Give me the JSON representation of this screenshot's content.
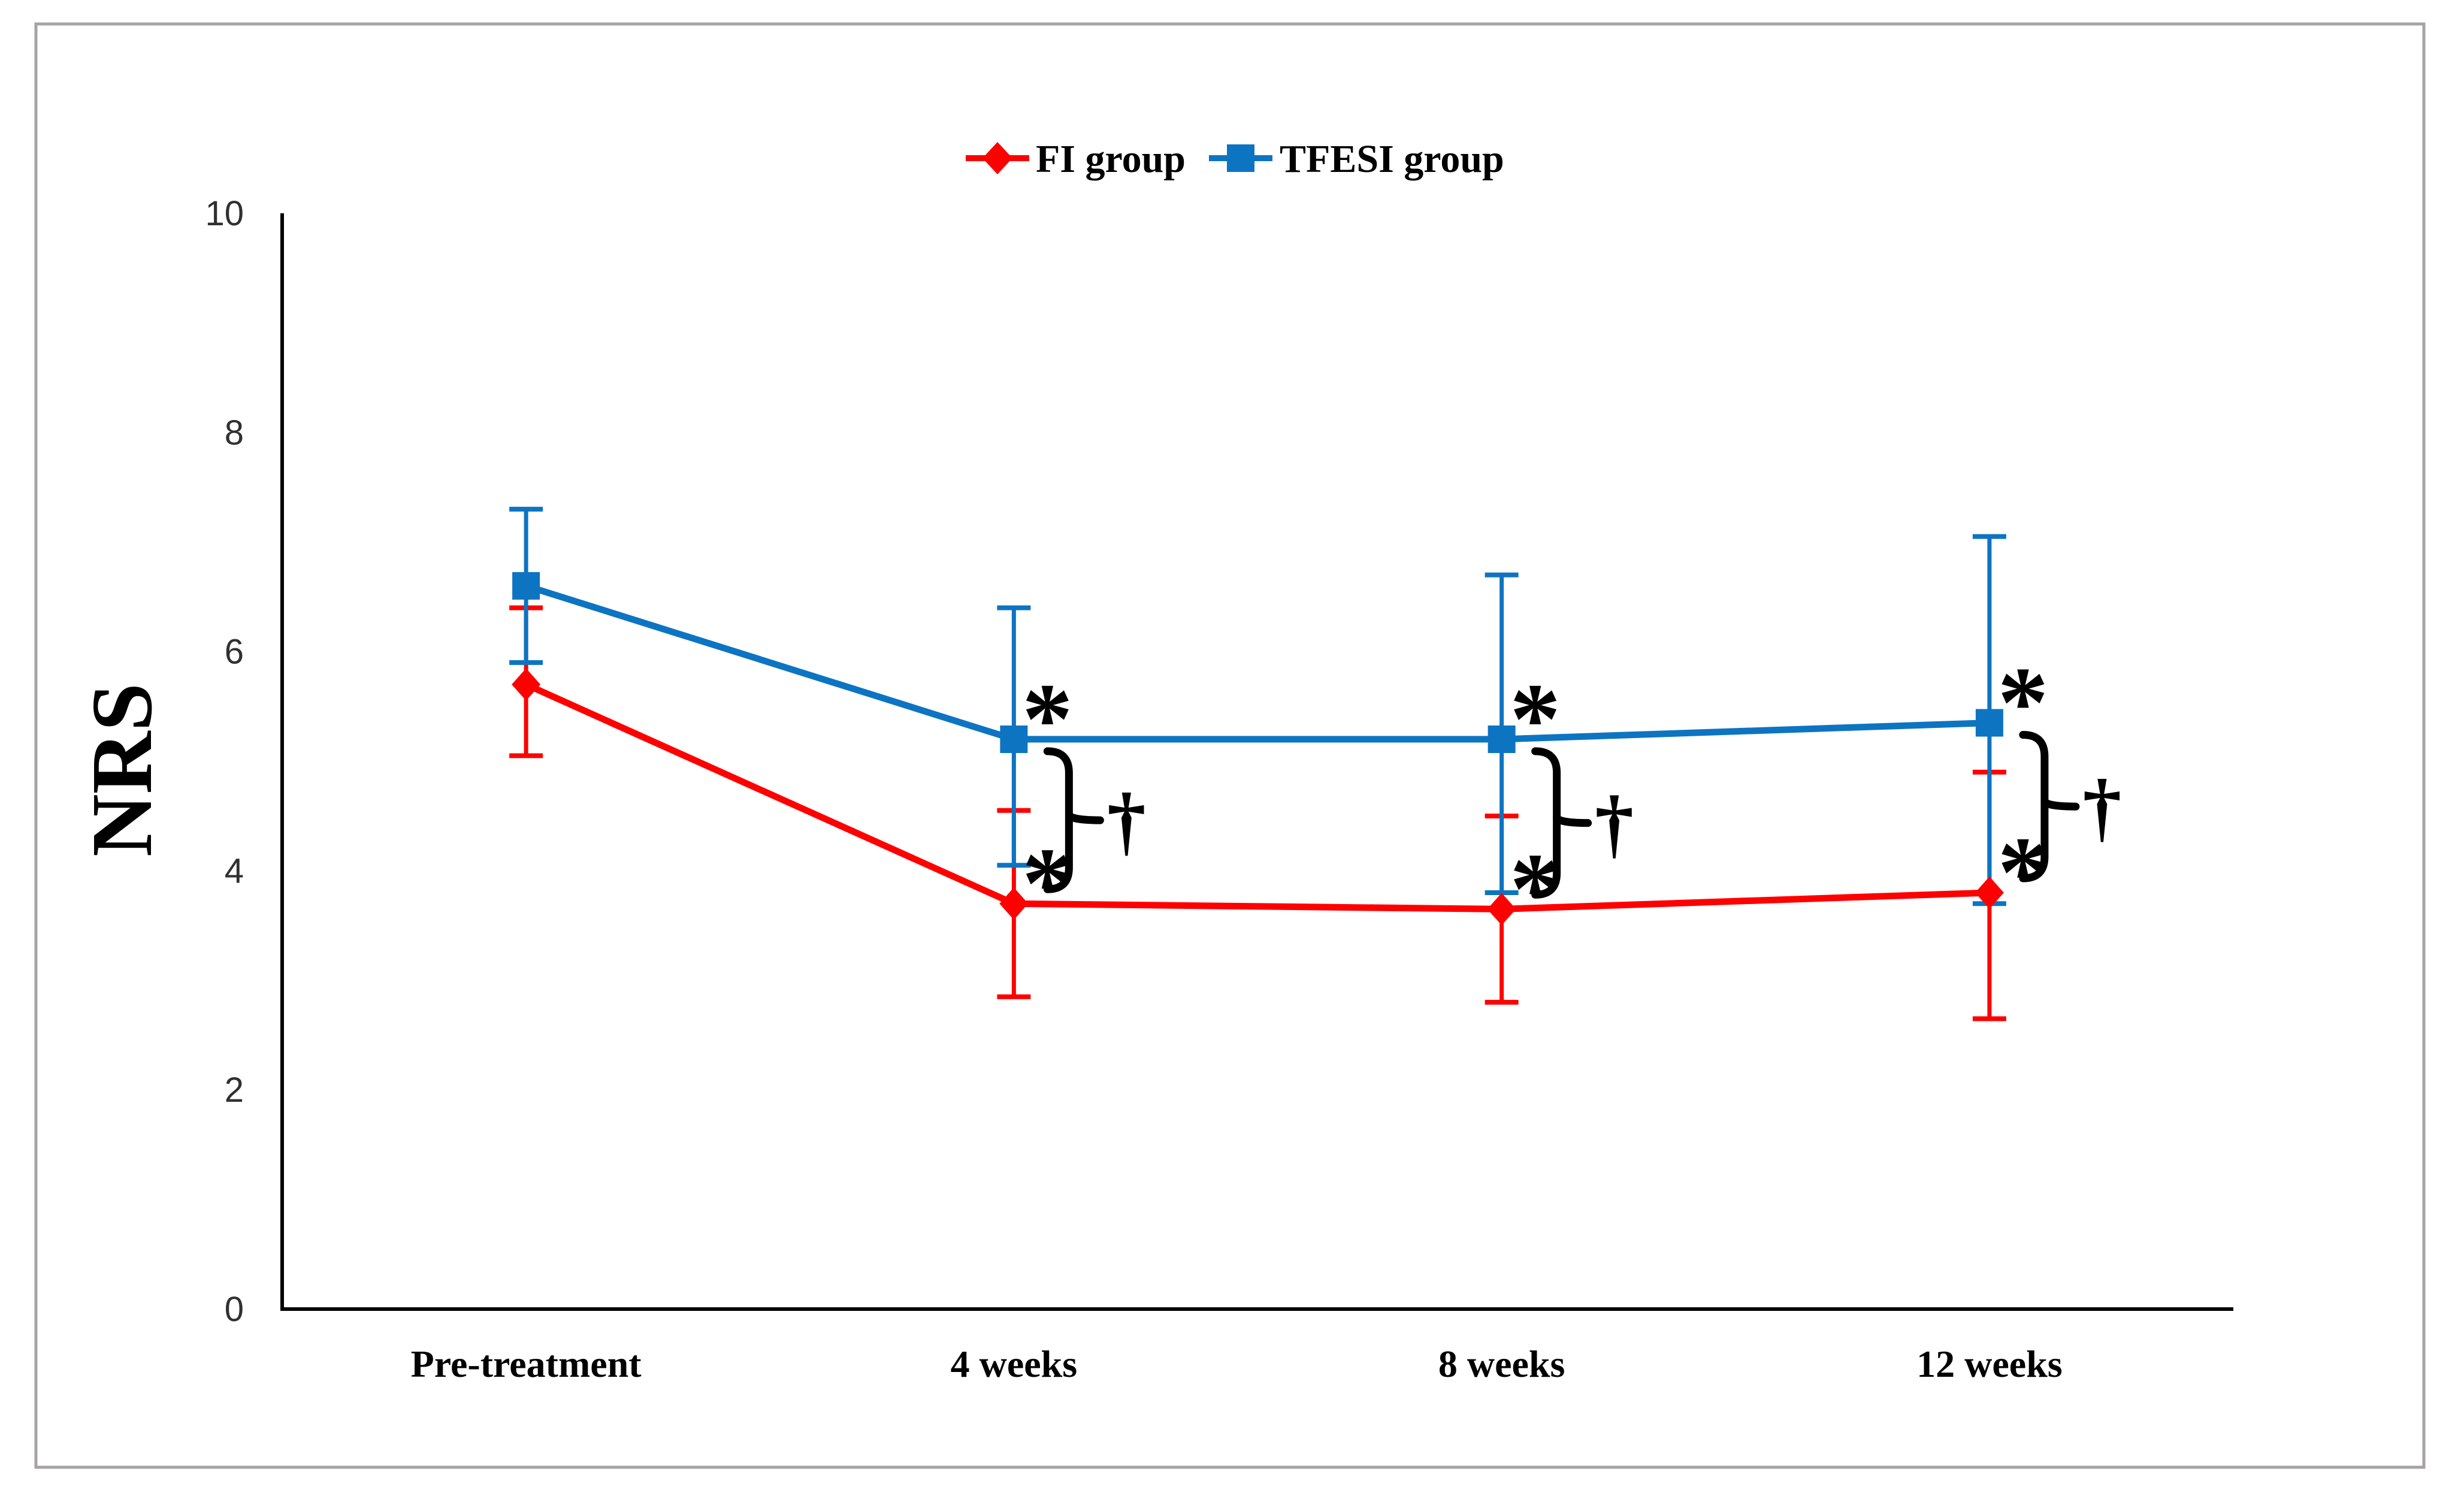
{
  "legend": {
    "items": [
      {
        "label": "FI group",
        "marker_icon": "diamond-icon",
        "color": "#ff0000"
      },
      {
        "label": "TFESI group",
        "marker_icon": "square-icon",
        "color": "#0d74c2"
      }
    ]
  },
  "colors": {
    "fi_red": "#ff0000",
    "tfesi_blue": "#0d74c2",
    "axis_black": "#000000",
    "figure_border_gray": "#a8a2a2"
  },
  "chart_data": {
    "type": "line",
    "title": "",
    "xlabel": "",
    "ylabel": "NRS",
    "ylim": [
      0,
      10
    ],
    "yticks": [
      0,
      2,
      4,
      6,
      8,
      10
    ],
    "grid": false,
    "legend_position": "top-center",
    "categories": [
      "Pre-treatment",
      "4 weeks",
      "8 weeks",
      "12 weeks"
    ],
    "series": [
      {
        "name": "FI group",
        "color": "#ff0000",
        "marker": "diamond",
        "values": [
          5.7,
          3.7,
          3.65,
          3.8
        ],
        "error_upper": [
          6.4,
          4.55,
          4.5,
          4.9
        ],
        "error_lower": [
          5.05,
          2.85,
          2.8,
          2.65
        ]
      },
      {
        "name": "TFESI group",
        "color": "#0d74c2",
        "marker": "square",
        "values": [
          6.6,
          5.2,
          5.2,
          5.35
        ],
        "error_upper": [
          7.3,
          6.4,
          6.7,
          7.05
        ],
        "error_lower": [
          5.9,
          4.05,
          3.8,
          3.7
        ]
      }
    ],
    "annotations": {
      "asterisk_symbol": "*",
      "dagger_symbol": "†",
      "asterisks": [
        {
          "series": "TFESI group",
          "category": "4 weeks"
        },
        {
          "series": "FI group",
          "category": "4 weeks"
        },
        {
          "series": "TFESI group",
          "category": "8 weeks"
        },
        {
          "series": "FI group",
          "category": "8 weeks"
        },
        {
          "series": "TFESI group",
          "category": "12 weeks"
        },
        {
          "series": "FI group",
          "category": "12 weeks"
        }
      ],
      "group_difference_brackets": [
        {
          "category": "4 weeks"
        },
        {
          "category": "8 weeks"
        },
        {
          "category": "12 weeks"
        }
      ]
    }
  }
}
